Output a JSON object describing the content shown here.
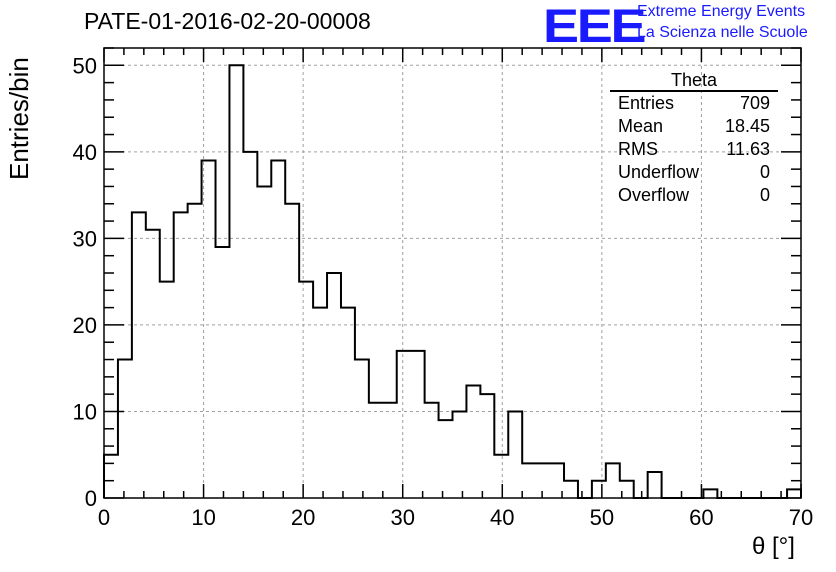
{
  "header": {
    "title": "PATE-01-2016-02-20-00008",
    "logo_text": "EEE",
    "logo_line1": "Extreme Energy Events",
    "logo_line2": "La Scienza nelle Scuole"
  },
  "stats_box": {
    "title": "Theta",
    "rows": [
      {
        "label": "Entries",
        "value": "709"
      },
      {
        "label": "Mean",
        "value": "18.45"
      },
      {
        "label": "RMS",
        "value": "11.63"
      },
      {
        "label": "Underflow",
        "value": "0"
      },
      {
        "label": "Overflow",
        "value": "0"
      }
    ]
  },
  "chart_data": {
    "type": "bar",
    "histogram": true,
    "title": "PATE-01-2016-02-20-00008",
    "xlabel": "θ [°]",
    "ylabel": "Entries/bin",
    "xlim": [
      0,
      70
    ],
    "ylim": [
      0,
      52
    ],
    "grid": true,
    "bin_width": 1.4,
    "bin_edges_start": 0,
    "values": [
      5,
      16,
      33,
      31,
      25,
      33,
      34,
      39,
      29,
      50,
      40,
      36,
      39,
      34,
      25,
      22,
      26,
      22,
      16,
      11,
      11,
      17,
      17,
      11,
      9,
      10,
      13,
      12,
      5,
      10,
      4,
      4,
      4,
      2,
      0,
      2,
      4,
      2,
      0,
      3,
      0,
      0,
      0,
      1,
      0,
      0,
      0,
      0,
      0,
      1
    ],
    "x_ticks": [
      "0",
      "10",
      "20",
      "30",
      "40",
      "50",
      "60",
      "70"
    ],
    "y_ticks": [
      "0",
      "10",
      "20",
      "30",
      "40",
      "50"
    ],
    "colors": {
      "line": "#000000",
      "grid": "#a0a0a0",
      "logo": "#1a1aff"
    }
  }
}
